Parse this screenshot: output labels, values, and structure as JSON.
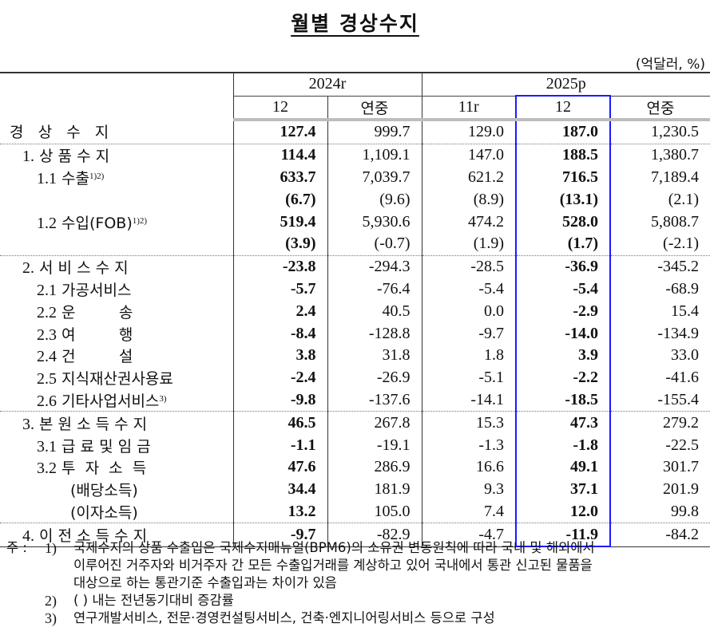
{
  "title": "월별 경상수지",
  "unit": "(억달러, %)",
  "header": {
    "years": [
      {
        "label": "2024r",
        "span": 2
      },
      {
        "label": "2025p",
        "span": 3
      }
    ],
    "columns": [
      "12",
      "연중",
      "11r",
      "12",
      "연중"
    ],
    "highlight_column_index": 4,
    "highlight_color": "#1a1aff"
  },
  "rows": [
    {
      "label": "경   상   수   지",
      "indent": 12,
      "values": [
        "127.4",
        "999.7",
        "129.0",
        "187.0",
        "1,230.5"
      ],
      "sep_before": false
    },
    {
      "label_num": "1.",
      "label": " 상 품 수 지",
      "indent": 28,
      "values": [
        "114.4",
        "1,109.1",
        "147.0",
        "188.5",
        "1,380.7"
      ],
      "sep_before": true
    },
    {
      "label_num": "1.1",
      "label": " 수출",
      "sup": "1)2)",
      "indent": 46,
      "values": [
        "633.7",
        "7,039.7",
        "621.2",
        "716.5",
        "7,189.4"
      ],
      "sep_before": false
    },
    {
      "label": "",
      "indent": 46,
      "values": [
        "(6.7)",
        "(9.6)",
        "(8.9)",
        "(13.1)",
        "(2.1)"
      ],
      "sep_before": false
    },
    {
      "label_num": "1.2",
      "label": " 수입(FOB)",
      "sup": "1)2)",
      "indent": 46,
      "values": [
        "519.4",
        "5,930.6",
        "474.2",
        "528.0",
        "5,808.7"
      ],
      "sep_before": false
    },
    {
      "label": "",
      "indent": 46,
      "values": [
        "(3.9)",
        "(-0.7)",
        "(1.9)",
        "(1.7)",
        "(-2.1)"
      ],
      "sep_before": false
    },
    {
      "label_num": "2.",
      "label": " 서 비 스 수 지",
      "indent": 28,
      "values": [
        "-23.8",
        "-294.3",
        "-28.5",
        "-36.9",
        "-345.2"
      ],
      "sep_before": true
    },
    {
      "label_num": "2.1",
      "label": " 가공서비스",
      "indent": 46,
      "values": [
        "-5.7",
        "-76.4",
        "-5.4",
        "-5.4",
        "-68.9"
      ],
      "sep_before": false
    },
    {
      "label_num": "2.2",
      "label": " 운         송",
      "indent": 46,
      "values": [
        "2.4",
        "40.5",
        "0.0",
        "-2.9",
        "15.4"
      ],
      "sep_before": false
    },
    {
      "label_num": "2.3",
      "label": " 여         행",
      "indent": 46,
      "values": [
        "-8.4",
        "-128.8",
        "-9.7",
        "-14.0",
        "-134.9"
      ],
      "sep_before": false
    },
    {
      "label_num": "2.4",
      "label": " 건         설",
      "indent": 46,
      "values": [
        "3.8",
        "31.8",
        "1.8",
        "3.9",
        "33.0"
      ],
      "sep_before": false
    },
    {
      "label_num": "2.5",
      "label": " 지식재산권사용료",
      "indent": 46,
      "values": [
        "-2.4",
        "-26.9",
        "-5.1",
        "-2.2",
        "-41.6"
      ],
      "sep_before": false
    },
    {
      "label_num": "2.6",
      "label": " 기타사업서비스",
      "sup": "3)",
      "indent": 46,
      "values": [
        "-9.8",
        "-137.6",
        "-14.1",
        "-18.5",
        "-155.4"
      ],
      "sep_before": false
    },
    {
      "label_num": "3.",
      "label": " 본 원 소 득 수 지",
      "indent": 28,
      "values": [
        "46.5",
        "267.8",
        "15.3",
        "47.3",
        "279.2"
      ],
      "sep_before": true
    },
    {
      "label_num": "3.1",
      "label": " 급 료 및 임 금",
      "indent": 46,
      "values": [
        "-1.1",
        "-19.1",
        "-1.3",
        "-1.8",
        "-22.5"
      ],
      "sep_before": false
    },
    {
      "label_num": "3.2",
      "label": " 투  자  소  득",
      "indent": 46,
      "values": [
        "47.6",
        "286.9",
        "16.6",
        "49.1",
        "301.7"
      ],
      "sep_before": false
    },
    {
      "label": "(배당소득)",
      "indent": 88,
      "values": [
        "34.4",
        "181.9",
        "9.3",
        "37.1",
        "201.9"
      ],
      "sep_before": false
    },
    {
      "label": "(이자소득)",
      "indent": 88,
      "values": [
        "13.2",
        "105.0",
        "7.4",
        "12.0",
        "99.8"
      ],
      "sep_before": false
    },
    {
      "label_num": "4.",
      "label": " 이 전 소 득 수 지",
      "indent": 28,
      "values": [
        "-9.7",
        "-82.9",
        "-4.7",
        "-11.9",
        "-84.2"
      ],
      "sep_before": true
    }
  ],
  "notes": {
    "prefix": "주 :",
    "items": [
      {
        "num": "1)",
        "lines": [
          "국제수지의 상품 수출입은 국제수지매뉴얼(BPM6)의 소유권 변동원칙에 따라 국내 및 해외에서",
          "이루어진 거주자와 비거주자 간 모든 수출입거래를 계상하고 있어 국내에서 통관 신고된 물품을",
          "대상으로 하는 통관기준 수출입과는 차이가 있음"
        ]
      },
      {
        "num": "2)",
        "lines": [
          "(   ) 내는 전년동기대비 증감률"
        ]
      },
      {
        "num": "3)",
        "lines": [
          "연구개발서비스, 전문·경영컨설팅서비스, 건축·엔지니어링서비스 등으로 구성"
        ]
      }
    ]
  }
}
